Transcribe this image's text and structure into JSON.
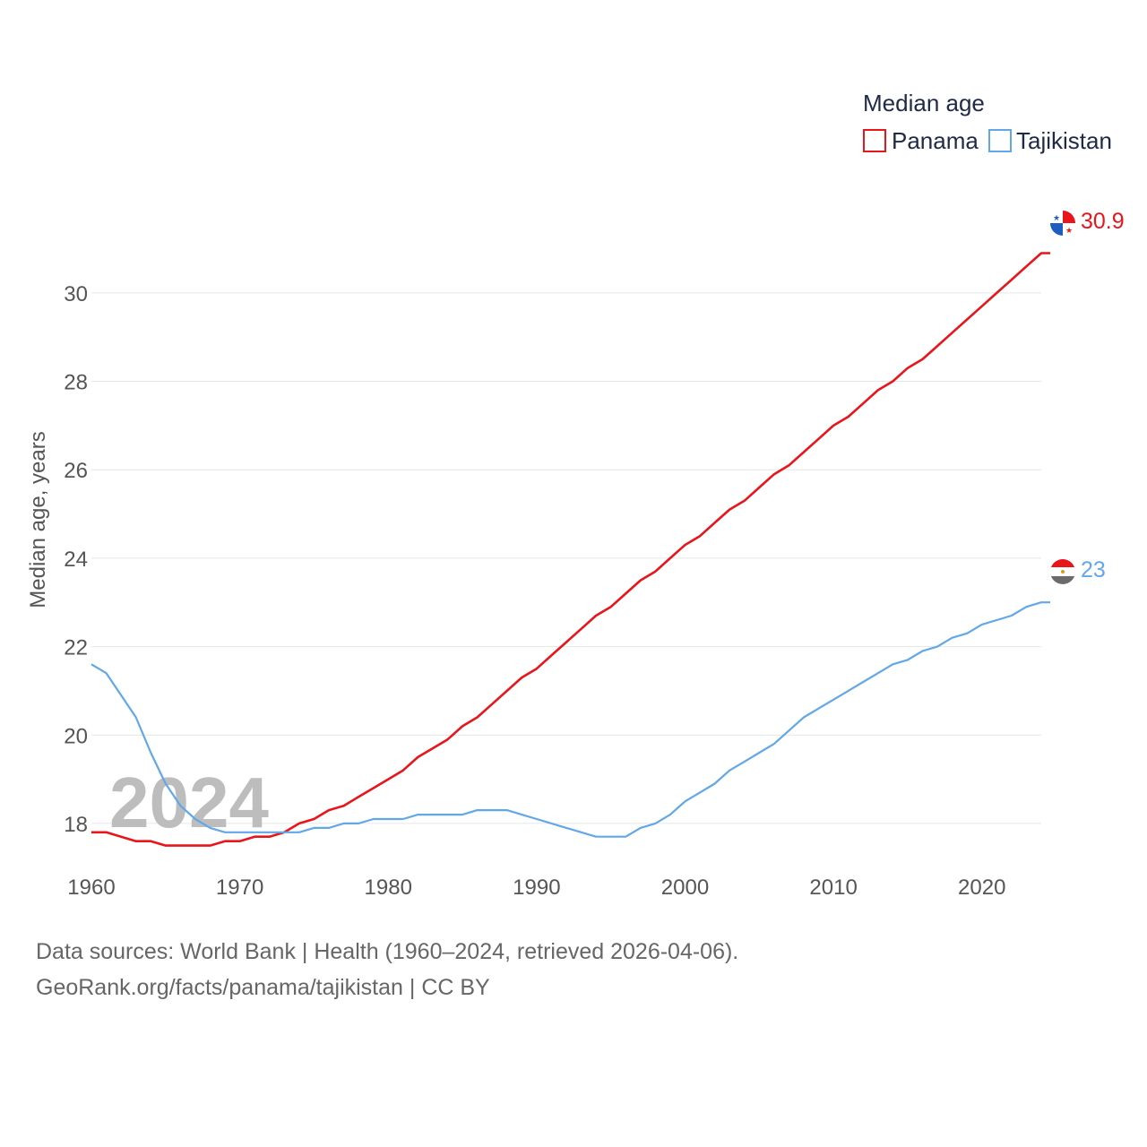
{
  "chart_data": {
    "type": "line",
    "legend_title": "Median age",
    "ylabel": "Median age, years",
    "xlabel": "",
    "xlim": [
      1960,
      2024
    ],
    "ylim": [
      16.6,
      31.7
    ],
    "x_ticks": [
      1960,
      1970,
      1980,
      1990,
      2000,
      2010,
      2020
    ],
    "y_ticks": [
      18,
      20,
      22,
      24,
      26,
      28,
      30
    ],
    "year_watermark": "2024",
    "grid": true,
    "legend_position": "top-right",
    "series": [
      {
        "name": "Panama",
        "color": "#e8151b",
        "end_label": "30.9",
        "flag": "panama-flag-icon",
        "x": [
          1960,
          1961,
          1962,
          1963,
          1964,
          1965,
          1966,
          1967,
          1968,
          1969,
          1970,
          1971,
          1972,
          1973,
          1974,
          1975,
          1976,
          1977,
          1978,
          1979,
          1980,
          1981,
          1982,
          1983,
          1984,
          1985,
          1986,
          1987,
          1988,
          1989,
          1990,
          1991,
          1992,
          1993,
          1994,
          1995,
          1996,
          1997,
          1998,
          1999,
          2000,
          2001,
          2002,
          2003,
          2004,
          2005,
          2006,
          2007,
          2008,
          2009,
          2010,
          2011,
          2012,
          2013,
          2014,
          2015,
          2016,
          2017,
          2018,
          2019,
          2020,
          2021,
          2022,
          2023,
          2024
        ],
        "values": [
          17.8,
          17.8,
          17.7,
          17.6,
          17.6,
          17.5,
          17.5,
          17.5,
          17.5,
          17.6,
          17.6,
          17.7,
          17.7,
          17.8,
          18.0,
          18.1,
          18.3,
          18.4,
          18.6,
          18.8,
          19.0,
          19.2,
          19.5,
          19.7,
          19.9,
          20.2,
          20.4,
          20.7,
          21.0,
          21.3,
          21.5,
          21.8,
          22.1,
          22.4,
          22.7,
          22.9,
          23.2,
          23.5,
          23.7,
          24.0,
          24.3,
          24.5,
          24.8,
          25.1,
          25.3,
          25.6,
          25.9,
          26.1,
          26.4,
          26.7,
          27.0,
          27.2,
          27.5,
          27.8,
          28.0,
          28.3,
          28.5,
          28.8,
          29.1,
          29.4,
          29.7,
          30.0,
          30.3,
          30.6,
          30.9
        ]
      },
      {
        "name": "Tajikistan",
        "color": "#62a7e8",
        "end_label": "23",
        "flag": "tajikistan-flag-icon",
        "x": [
          1960,
          1961,
          1962,
          1963,
          1964,
          1965,
          1966,
          1967,
          1968,
          1969,
          1970,
          1971,
          1972,
          1973,
          1974,
          1975,
          1976,
          1977,
          1978,
          1979,
          1980,
          1981,
          1982,
          1983,
          1984,
          1985,
          1986,
          1987,
          1988,
          1989,
          1990,
          1991,
          1992,
          1993,
          1994,
          1995,
          1996,
          1997,
          1998,
          1999,
          2000,
          2001,
          2002,
          2003,
          2004,
          2005,
          2006,
          2007,
          2008,
          2009,
          2010,
          2011,
          2012,
          2013,
          2014,
          2015,
          2016,
          2017,
          2018,
          2019,
          2020,
          2021,
          2022,
          2023,
          2024
        ],
        "values": [
          21.6,
          21.4,
          20.9,
          20.4,
          19.6,
          18.9,
          18.4,
          18.1,
          17.9,
          17.8,
          17.8,
          17.8,
          17.8,
          17.8,
          17.8,
          17.9,
          17.9,
          18.0,
          18.0,
          18.1,
          18.1,
          18.1,
          18.2,
          18.2,
          18.2,
          18.2,
          18.3,
          18.3,
          18.3,
          18.2,
          18.1,
          18.0,
          17.9,
          17.8,
          17.7,
          17.7,
          17.7,
          17.9,
          18.0,
          18.2,
          18.5,
          18.7,
          18.9,
          19.2,
          19.4,
          19.6,
          19.8,
          20.1,
          20.4,
          20.6,
          20.8,
          21.0,
          21.2,
          21.4,
          21.6,
          21.7,
          21.9,
          22.0,
          22.2,
          22.3,
          22.5,
          22.6,
          22.7,
          22.9,
          23.0
        ]
      }
    ]
  },
  "footer": {
    "line1": "Data sources: World Bank | Health (1960–2024, retrieved 2026-04-06).",
    "line2": "GeoRank.org/facts/panama/tajikistan | CC BY"
  }
}
